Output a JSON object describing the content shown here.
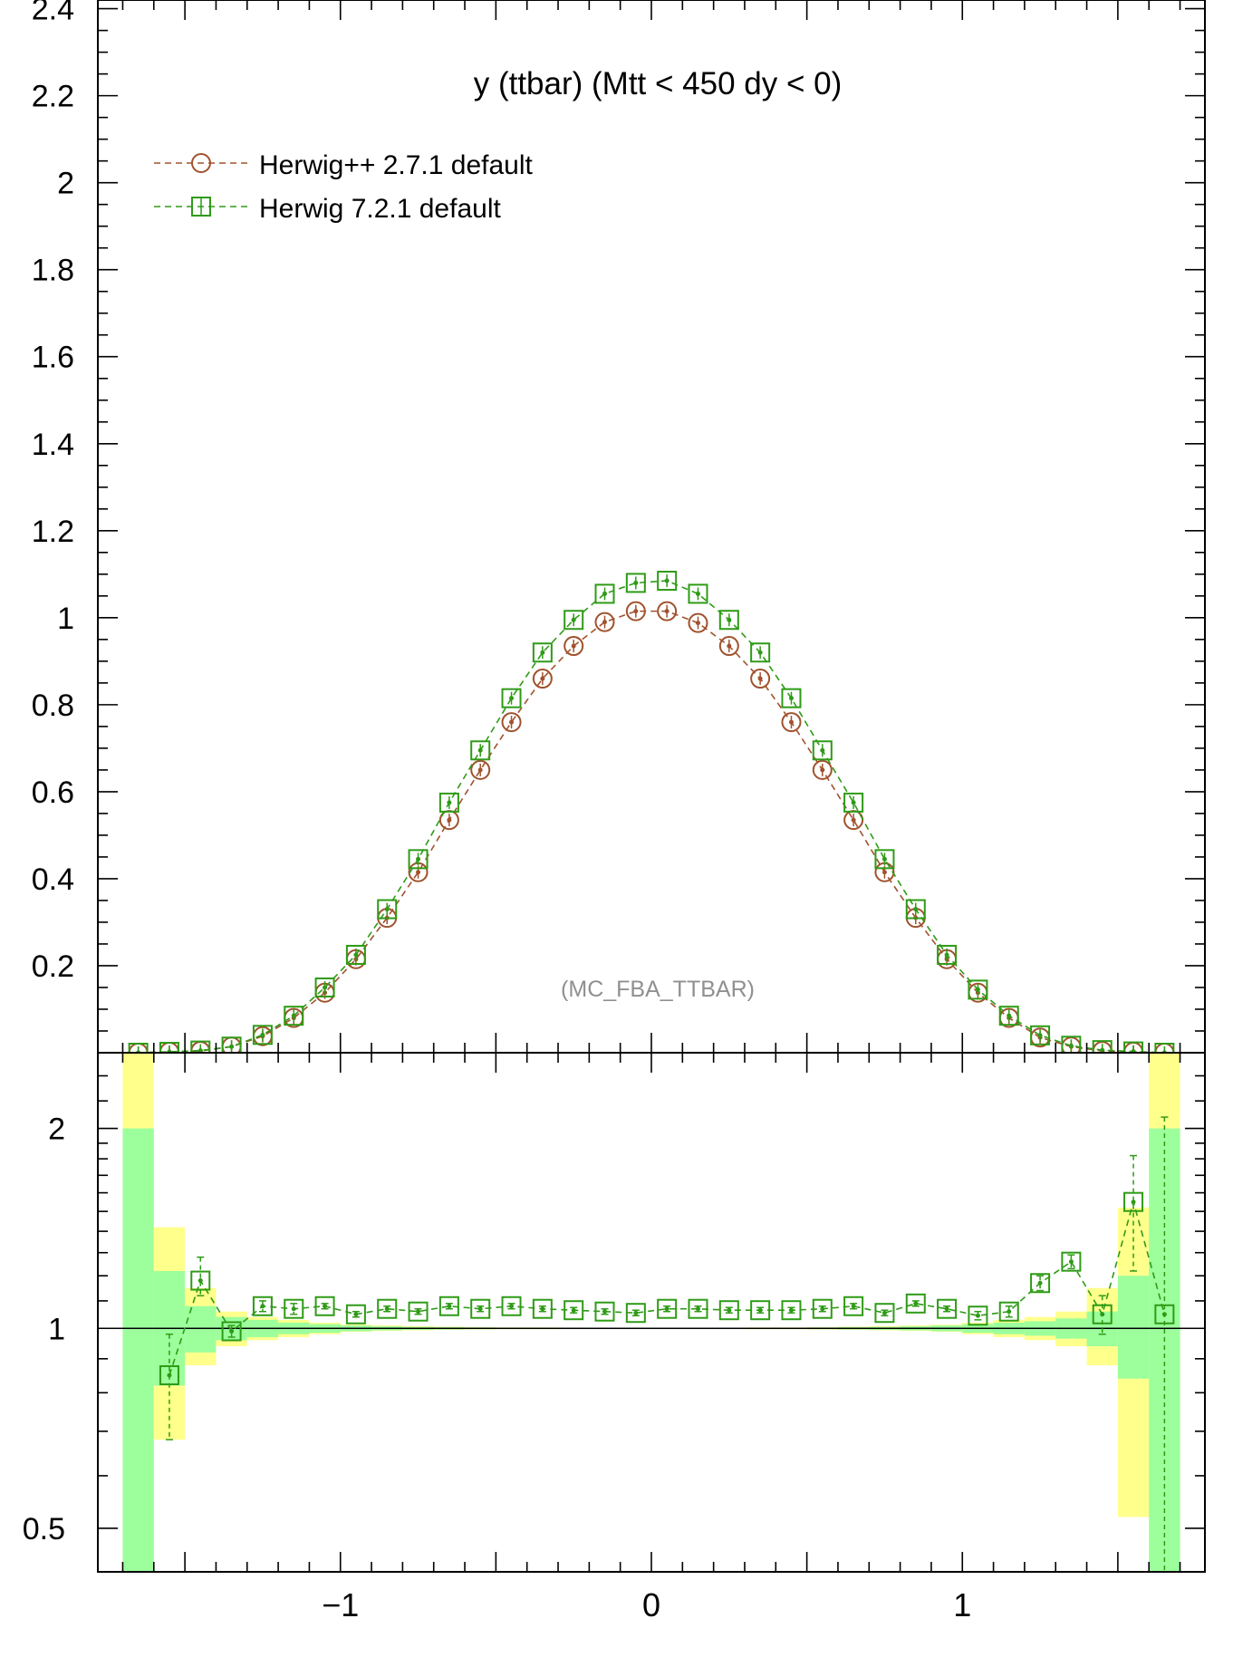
{
  "chart_data": [
    {
      "type": "scatter",
      "title": "y (ttbar) (Mtt < 450 dy < 0)",
      "watermark": "(MC_FBA_TTBAR)",
      "xlim": [
        -1.78,
        1.78
      ],
      "ylim": [
        0.0,
        2.42
      ],
      "yticks": [
        "0.2",
        "0.4",
        "0.6",
        "0.8",
        "1",
        "1.2",
        "1.4",
        "1.6",
        "1.8",
        "2",
        "2.2",
        "2.4"
      ],
      "legend_placement": "top-left",
      "x": [
        -1.65,
        -1.55,
        -1.45,
        -1.35,
        -1.25,
        -1.15,
        -1.05,
        -0.95,
        -0.85,
        -0.75,
        -0.65,
        -0.55,
        -0.45,
        -0.35,
        -0.25,
        -0.15,
        -0.05,
        0.05,
        0.15,
        0.25,
        0.35,
        0.45,
        0.55,
        0.65,
        0.75,
        0.85,
        0.95,
        1.05,
        1.15,
        1.25,
        1.35,
        1.45,
        1.55,
        1.65
      ],
      "series": [
        {
          "name": "Herwig++ 2.7.1 default",
          "color": "#a0522d",
          "marker": "circle",
          "values": [
            0.0,
            0.002,
            0.004,
            0.014,
            0.038,
            0.08,
            0.138,
            0.215,
            0.31,
            0.415,
            0.535,
            0.65,
            0.76,
            0.86,
            0.935,
            0.99,
            1.015,
            1.015,
            0.988,
            0.935,
            0.86,
            0.76,
            0.65,
            0.535,
            0.415,
            0.31,
            0.215,
            0.138,
            0.08,
            0.035,
            0.014,
            0.004,
            0.002,
            0.0
          ]
        },
        {
          "name": "Herwig 7.2.1 default",
          "color": "#2e9b16",
          "marker": "square",
          "values": [
            0.0,
            0.002,
            0.005,
            0.014,
            0.041,
            0.085,
            0.15,
            0.225,
            0.33,
            0.445,
            0.575,
            0.695,
            0.815,
            0.92,
            0.995,
            1.055,
            1.08,
            1.085,
            1.055,
            0.995,
            0.92,
            0.815,
            0.695,
            0.575,
            0.445,
            0.33,
            0.225,
            0.145,
            0.085,
            0.04,
            0.016,
            0.006,
            0.003,
            0.0
          ]
        }
      ]
    },
    {
      "type": "scatter",
      "xlim": [
        -1.78,
        1.78
      ],
      "ylim": [
        0.43,
        2.6
      ],
      "log_scale_y": true,
      "yticks": [
        "0.5",
        "1",
        "2"
      ],
      "xticks": [
        "−1",
        "0",
        "1"
      ],
      "reference_line": 1,
      "bands": {
        "x_edges": [
          -1.7,
          -1.6,
          -1.5,
          -1.4,
          -1.3,
          -1.2,
          -1.1,
          -1.0,
          -0.9,
          -0.8,
          -0.7,
          -0.6,
          -0.5,
          -0.4,
          -0.3,
          -0.2,
          -0.1,
          0.0,
          0.1,
          0.2,
          0.3,
          0.4,
          0.5,
          0.6,
          0.7,
          0.8,
          0.9,
          1.0,
          1.1,
          1.2,
          1.3,
          1.4,
          1.5,
          1.6,
          1.7
        ],
        "green_lo": [
          0.38,
          0.82,
          0.92,
          0.96,
          0.97,
          0.98,
          0.985,
          0.99,
          0.993,
          0.995,
          0.996,
          0.997,
          0.998,
          0.998,
          0.999,
          0.999,
          0.999,
          0.999,
          0.999,
          0.999,
          0.998,
          0.998,
          0.997,
          0.996,
          0.995,
          0.993,
          0.99,
          0.985,
          0.98,
          0.975,
          0.965,
          0.94,
          0.84,
          0.38
        ],
        "green_hi": [
          2.0,
          1.22,
          1.08,
          1.04,
          1.03,
          1.02,
          1.015,
          1.01,
          1.007,
          1.005,
          1.004,
          1.003,
          1.002,
          1.002,
          1.001,
          1.001,
          1.001,
          1.001,
          1.001,
          1.001,
          1.002,
          1.002,
          1.003,
          1.004,
          1.005,
          1.007,
          1.01,
          1.015,
          1.02,
          1.025,
          1.035,
          1.06,
          1.2,
          2.0
        ],
        "yellow_lo": [
          0.38,
          0.68,
          0.88,
          0.94,
          0.96,
          0.97,
          0.98,
          0.988,
          0.991,
          0.993,
          0.995,
          0.996,
          0.997,
          0.997,
          0.998,
          0.998,
          0.998,
          0.998,
          0.998,
          0.998,
          0.997,
          0.997,
          0.996,
          0.995,
          0.993,
          0.991,
          0.988,
          0.98,
          0.97,
          0.96,
          0.94,
          0.88,
          0.52,
          0.38
        ],
        "yellow_hi": [
          2.6,
          1.42,
          1.15,
          1.06,
          1.04,
          1.03,
          1.02,
          1.013,
          1.01,
          1.008,
          1.006,
          1.004,
          1.003,
          1.003,
          1.002,
          1.002,
          1.002,
          1.002,
          1.002,
          1.002,
          1.003,
          1.003,
          1.004,
          1.006,
          1.008,
          1.01,
          1.013,
          1.02,
          1.03,
          1.04,
          1.06,
          1.15,
          1.52,
          2.6
        ]
      },
      "series": [
        {
          "name": "Herwig 7.2.1 default",
          "color": "#2e9b16",
          "marker": "square",
          "x": [
            -1.55,
            -1.45,
            -1.35,
            -1.25,
            -1.15,
            -1.05,
            -0.95,
            -0.85,
            -0.75,
            -0.65,
            -0.55,
            -0.45,
            -0.35,
            -0.25,
            -0.15,
            -0.05,
            0.05,
            0.15,
            0.25,
            0.35,
            0.45,
            0.55,
            0.65,
            0.75,
            0.85,
            0.95,
            1.05,
            1.15,
            1.25,
            1.35,
            1.45,
            1.55,
            1.65
          ],
          "values": [
            0.85,
            1.18,
            0.99,
            1.08,
            1.07,
            1.08,
            1.05,
            1.07,
            1.06,
            1.08,
            1.07,
            1.08,
            1.07,
            1.065,
            1.06,
            1.055,
            1.07,
            1.07,
            1.065,
            1.065,
            1.065,
            1.07,
            1.08,
            1.055,
            1.09,
            1.07,
            1.045,
            1.06,
            1.17,
            1.26,
            1.05,
            1.55,
            1.05
          ],
          "err_lo": [
            0.68,
            1.12,
            0.97,
            1.06,
            1.05,
            1.07,
            1.04,
            1.06,
            1.05,
            1.07,
            1.06,
            1.07,
            1.06,
            1.055,
            1.05,
            1.045,
            1.06,
            1.06,
            1.055,
            1.055,
            1.055,
            1.06,
            1.07,
            1.045,
            1.08,
            1.06,
            1.03,
            1.04,
            1.14,
            1.23,
            0.98,
            1.22,
            0.38
          ],
          "err_hi": [
            0.98,
            1.28,
            1.01,
            1.1,
            1.09,
            1.09,
            1.06,
            1.08,
            1.07,
            1.09,
            1.08,
            1.09,
            1.08,
            1.075,
            1.07,
            1.065,
            1.08,
            1.08,
            1.075,
            1.075,
            1.075,
            1.08,
            1.09,
            1.065,
            1.1,
            1.08,
            1.06,
            1.08,
            1.2,
            1.29,
            1.12,
            1.82,
            2.08
          ]
        }
      ]
    }
  ]
}
